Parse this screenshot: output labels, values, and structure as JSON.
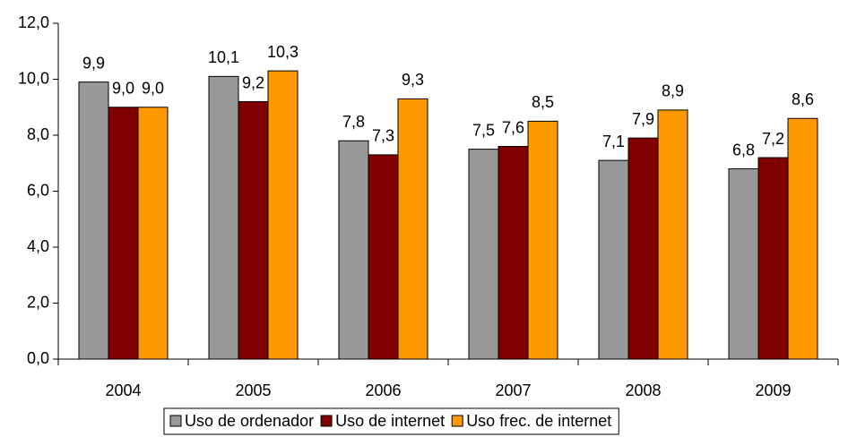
{
  "chart_data": {
    "type": "bar",
    "categories": [
      "2004",
      "2005",
      "2006",
      "2007",
      "2008",
      "2009"
    ],
    "series": [
      {
        "name": "Uso de ordenador",
        "color": "#999999",
        "values": [
          9.9,
          10.1,
          7.8,
          7.5,
          7.1,
          6.8
        ],
        "value_labels": [
          "9,9",
          "10,1",
          "7,8",
          "7,5",
          "7,1",
          "6,8"
        ]
      },
      {
        "name": "Uso de internet",
        "color": "#800000",
        "values": [
          9.0,
          9.2,
          7.3,
          7.6,
          7.9,
          7.2
        ],
        "value_labels": [
          "9,0",
          "9,2",
          "7,3",
          "7,6",
          "7,9",
          "7,2"
        ]
      },
      {
        "name": "Uso frec. de internet",
        "color": "#ff9900",
        "values": [
          9.0,
          10.3,
          9.3,
          8.5,
          8.9,
          8.6
        ],
        "value_labels": [
          "9,0",
          "10,3",
          "9,3",
          "8,5",
          "8,9",
          "8,6"
        ]
      }
    ],
    "ylim": [
      0,
      12
    ],
    "yticks": [
      {
        "value": 0,
        "label": "0,0"
      },
      {
        "value": 2,
        "label": "2,0"
      },
      {
        "value": 4,
        "label": "4,0"
      },
      {
        "value": 6,
        "label": "6,0"
      },
      {
        "value": 8,
        "label": "8,0"
      },
      {
        "value": 10,
        "label": "10,0"
      },
      {
        "value": 12,
        "label": "12,0"
      }
    ],
    "grid": false,
    "legend": "bottom"
  }
}
